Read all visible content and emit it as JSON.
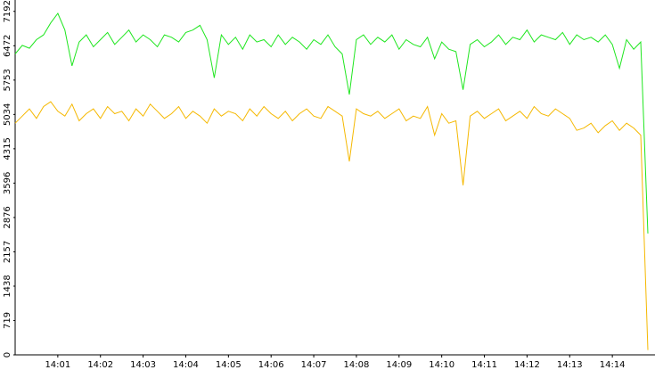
{
  "chart_data": {
    "type": "line",
    "categories": [
      null,
      null,
      null,
      null,
      null,
      null,
      "14:01",
      null,
      null,
      null,
      null,
      null,
      "14:02",
      null,
      null,
      null,
      null,
      null,
      "14:03",
      null,
      null,
      null,
      null,
      null,
      "14:04",
      null,
      null,
      null,
      null,
      null,
      "14:05",
      null,
      null,
      null,
      null,
      null,
      "14:06",
      null,
      null,
      null,
      null,
      null,
      "14:07",
      null,
      null,
      null,
      null,
      null,
      "14:08",
      null,
      null,
      null,
      null,
      null,
      "14:09",
      null,
      null,
      null,
      null,
      null,
      "14:10",
      null,
      null,
      null,
      null,
      null,
      "14:11",
      null,
      null,
      null,
      null,
      null,
      "14:12",
      null,
      null,
      null,
      null,
      null,
      "14:13",
      null,
      null,
      null,
      null,
      null,
      "14:14",
      null,
      null,
      null,
      null,
      null
    ],
    "series": [
      {
        "color": "#1ee61e",
        "values": [
          6300,
          6480,
          6420,
          6600,
          6700,
          6950,
          7150,
          6800,
          6050,
          6550,
          6700,
          6450,
          6600,
          6750,
          6500,
          6650,
          6800,
          6550,
          6700,
          6600,
          6450,
          6700,
          6650,
          6550,
          6750,
          6800,
          6900,
          6600,
          5800,
          6700,
          6500,
          6650,
          6400,
          6700,
          6550,
          6600,
          6450,
          6700,
          6500,
          6650,
          6550,
          6400,
          6600,
          6500,
          6700,
          6450,
          6300,
          5450,
          6600,
          6700,
          6500,
          6650,
          6550,
          6700,
          6400,
          6600,
          6500,
          6450,
          6650,
          6200,
          6550,
          6400,
          6350,
          5550,
          6500,
          6600,
          6450,
          6550,
          6700,
          6500,
          6650,
          6600,
          6800,
          6550,
          6700,
          6650,
          6600,
          6750,
          6500,
          6700,
          6600,
          6650,
          6550,
          6700,
          6500,
          6000,
          6600,
          6400,
          6550,
          2540
        ]
      },
      {
        "color": "#f5b800",
        "values": [
          4850,
          5000,
          5150,
          4950,
          5200,
          5300,
          5100,
          5000,
          5250,
          4900,
          5050,
          5150,
          4950,
          5200,
          5050,
          5100,
          4900,
          5150,
          5000,
          5250,
          5100,
          4950,
          5050,
          5200,
          4950,
          5100,
          5000,
          4850,
          5150,
          5000,
          5100,
          5050,
          4900,
          5150,
          5000,
          5200,
          5050,
          4950,
          5100,
          4900,
          5050,
          5150,
          5000,
          4950,
          5200,
          5100,
          5000,
          4050,
          5150,
          5050,
          5000,
          5100,
          4950,
          5050,
          5150,
          4900,
          5000,
          4950,
          5200,
          4600,
          5050,
          4850,
          4900,
          3550,
          5000,
          5100,
          4950,
          5050,
          5150,
          4900,
          5000,
          5100,
          4950,
          5200,
          5050,
          5000,
          5150,
          5050,
          4950,
          4700,
          4750,
          4850,
          4650,
          4800,
          4900,
          4700,
          4850,
          4750,
          4600,
          100
        ]
      }
    ],
    "ylim": [
      0,
      7430
    ],
    "yticks": [
      0,
      719,
      1438,
      2157,
      2876,
      3596,
      4315,
      5034,
      5753,
      6472,
      7192
    ]
  }
}
